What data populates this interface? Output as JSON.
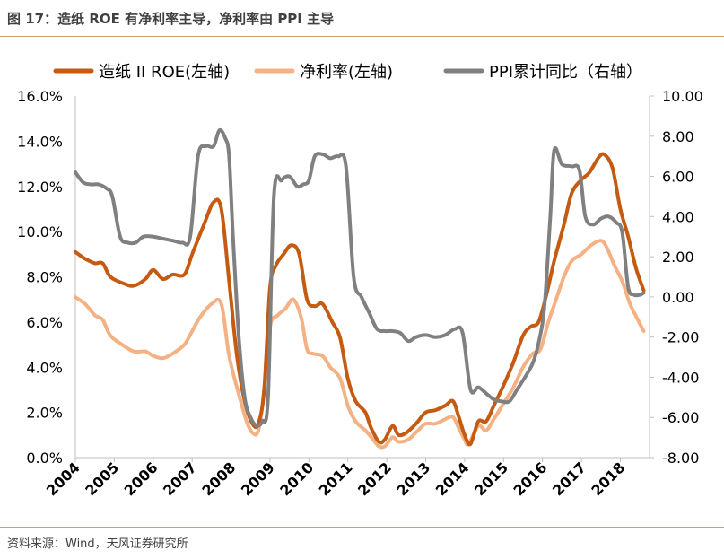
{
  "header": {
    "title": "图 17：造纸 ROE 有净利率主导，净利率由 PPI 主导"
  },
  "footer": {
    "source": "资料来源：Wind，天风证券研究所"
  },
  "colors": {
    "roe": "#c55a11",
    "net_margin": "#f4b183",
    "ppi": "#808080",
    "rule": "#c8a165"
  },
  "chart_data": {
    "type": "line",
    "title": "图 17：造纸 ROE 有净利率主导，净利率由 PPI 主导",
    "legend_position": "top",
    "grid": false,
    "x_tick_labels": [
      "2004",
      "2005",
      "2006",
      "2007",
      "2008",
      "2009",
      "2010",
      "2011",
      "2012",
      "2013",
      "2014",
      "2015",
      "2016",
      "2017",
      "2018"
    ],
    "xlim": [
      2004.0,
      2018.75
    ],
    "y_left": {
      "ylim": [
        0,
        16
      ],
      "ticks": [
        0,
        2,
        4,
        6,
        8,
        10,
        12,
        14,
        16
      ],
      "tick_labels": [
        "0.0%",
        "2.0%",
        "4.0%",
        "6.0%",
        "8.0%",
        "10.0%",
        "12.0%",
        "14.0%",
        "16.0%"
      ]
    },
    "y_right": {
      "ylim": [
        -8,
        10
      ],
      "ticks": [
        -8,
        -6,
        -4,
        -2,
        0,
        2,
        4,
        6,
        8,
        10
      ],
      "tick_labels": [
        "-8.00",
        "-6.00",
        "-4.00",
        "-2.00",
        "0.00",
        "2.00",
        "4.00",
        "6.00",
        "8.00",
        "10.00"
      ]
    },
    "series": [
      {
        "name": "造纸 II ROE(左轴)",
        "axis": "left",
        "color": "#c55a11",
        "points": [
          [
            2004.0,
            9.1
          ],
          [
            2004.25,
            8.8
          ],
          [
            2004.5,
            8.6
          ],
          [
            2004.7,
            8.6
          ],
          [
            2004.9,
            8.0
          ],
          [
            2005.25,
            7.7
          ],
          [
            2005.5,
            7.6
          ],
          [
            2005.8,
            7.9
          ],
          [
            2006.0,
            8.3
          ],
          [
            2006.25,
            7.9
          ],
          [
            2006.5,
            8.1
          ],
          [
            2006.8,
            8.1
          ],
          [
            2007.0,
            9.0
          ],
          [
            2007.3,
            10.3
          ],
          [
            2007.55,
            11.3
          ],
          [
            2007.75,
            11.0
          ],
          [
            2007.95,
            7.8
          ],
          [
            2008.15,
            4.5
          ],
          [
            2008.35,
            2.5
          ],
          [
            2008.55,
            1.5
          ],
          [
            2008.7,
            1.5
          ],
          [
            2008.85,
            3.0
          ],
          [
            2009.0,
            7.5
          ],
          [
            2009.15,
            8.5
          ],
          [
            2009.35,
            9.0
          ],
          [
            2009.55,
            9.4
          ],
          [
            2009.75,
            9.0
          ],
          [
            2009.95,
            7.0
          ],
          [
            2010.15,
            6.7
          ],
          [
            2010.35,
            6.8
          ],
          [
            2010.6,
            6.0
          ],
          [
            2010.8,
            5.3
          ],
          [
            2011.0,
            3.5
          ],
          [
            2011.2,
            2.5
          ],
          [
            2011.45,
            2.0
          ],
          [
            2011.6,
            1.3
          ],
          [
            2011.8,
            0.7
          ],
          [
            2011.95,
            0.8
          ],
          [
            2012.15,
            1.4
          ],
          [
            2012.3,
            1.0
          ],
          [
            2012.5,
            1.1
          ],
          [
            2012.75,
            1.5
          ],
          [
            2013.0,
            2.0
          ],
          [
            2013.25,
            2.1
          ],
          [
            2013.5,
            2.3
          ],
          [
            2013.7,
            2.5
          ],
          [
            2013.85,
            1.8
          ],
          [
            2014.0,
            1.0
          ],
          [
            2014.15,
            0.6
          ],
          [
            2014.35,
            1.6
          ],
          [
            2014.55,
            1.6
          ],
          [
            2014.75,
            2.3
          ],
          [
            2015.0,
            3.2
          ],
          [
            2015.25,
            4.2
          ],
          [
            2015.5,
            5.4
          ],
          [
            2015.7,
            5.8
          ],
          [
            2015.9,
            6.0
          ],
          [
            2016.1,
            7.2
          ],
          [
            2016.3,
            8.7
          ],
          [
            2016.55,
            10.3
          ],
          [
            2016.75,
            11.7
          ],
          [
            2017.0,
            12.3
          ],
          [
            2017.2,
            12.6
          ],
          [
            2017.45,
            13.3
          ],
          [
            2017.6,
            13.4
          ],
          [
            2017.8,
            12.8
          ],
          [
            2018.0,
            11.0
          ],
          [
            2018.2,
            9.8
          ],
          [
            2018.4,
            8.4
          ],
          [
            2018.6,
            7.4
          ]
        ]
      },
      {
        "name": "净利率(左轴)",
        "axis": "left",
        "color": "#f4b183",
        "points": [
          [
            2004.0,
            7.1
          ],
          [
            2004.25,
            6.8
          ],
          [
            2004.5,
            6.3
          ],
          [
            2004.7,
            6.1
          ],
          [
            2004.9,
            5.4
          ],
          [
            2005.2,
            5.0
          ],
          [
            2005.5,
            4.7
          ],
          [
            2005.8,
            4.7
          ],
          [
            2006.0,
            4.5
          ],
          [
            2006.25,
            4.4
          ],
          [
            2006.5,
            4.6
          ],
          [
            2006.8,
            5.0
          ],
          [
            2007.0,
            5.6
          ],
          [
            2007.2,
            6.2
          ],
          [
            2007.5,
            6.8
          ],
          [
            2007.75,
            6.8
          ],
          [
            2007.95,
            4.5
          ],
          [
            2008.2,
            2.8
          ],
          [
            2008.4,
            1.6
          ],
          [
            2008.55,
            1.1
          ],
          [
            2008.7,
            1.2
          ],
          [
            2008.85,
            3.0
          ],
          [
            2009.0,
            5.8
          ],
          [
            2009.2,
            6.3
          ],
          [
            2009.4,
            6.6
          ],
          [
            2009.6,
            7.0
          ],
          [
            2009.8,
            6.2
          ],
          [
            2009.95,
            4.8
          ],
          [
            2010.1,
            4.6
          ],
          [
            2010.35,
            4.5
          ],
          [
            2010.55,
            4.0
          ],
          [
            2010.8,
            3.5
          ],
          [
            2011.0,
            2.3
          ],
          [
            2011.2,
            1.6
          ],
          [
            2011.45,
            1.2
          ],
          [
            2011.65,
            0.8
          ],
          [
            2011.8,
            0.5
          ],
          [
            2011.95,
            0.5
          ],
          [
            2012.15,
            0.9
          ],
          [
            2012.3,
            0.7
          ],
          [
            2012.55,
            0.8
          ],
          [
            2012.8,
            1.2
          ],
          [
            2013.0,
            1.5
          ],
          [
            2013.25,
            1.5
          ],
          [
            2013.5,
            1.7
          ],
          [
            2013.7,
            1.8
          ],
          [
            2013.85,
            1.3
          ],
          [
            2014.0,
            0.8
          ],
          [
            2014.1,
            0.6
          ],
          [
            2014.35,
            1.4
          ],
          [
            2014.55,
            1.2
          ],
          [
            2014.75,
            1.7
          ],
          [
            2015.0,
            2.4
          ],
          [
            2015.25,
            3.1
          ],
          [
            2015.5,
            4.0
          ],
          [
            2015.75,
            4.6
          ],
          [
            2015.95,
            4.8
          ],
          [
            2016.15,
            6.0
          ],
          [
            2016.35,
            7.0
          ],
          [
            2016.55,
            8.0
          ],
          [
            2016.75,
            8.7
          ],
          [
            2017.0,
            9.0
          ],
          [
            2017.25,
            9.4
          ],
          [
            2017.5,
            9.6
          ],
          [
            2017.65,
            9.3
          ],
          [
            2017.85,
            8.5
          ],
          [
            2018.05,
            7.8
          ],
          [
            2018.25,
            6.8
          ],
          [
            2018.45,
            6.1
          ],
          [
            2018.6,
            5.6
          ]
        ]
      },
      {
        "name": "PPI累计同比（右轴）",
        "axis": "right",
        "color": "#808080",
        "points": [
          [
            2004.0,
            6.2
          ],
          [
            2004.2,
            5.7
          ],
          [
            2004.4,
            5.6
          ],
          [
            2004.6,
            5.6
          ],
          [
            2004.8,
            5.4
          ],
          [
            2004.95,
            5.0
          ],
          [
            2005.15,
            3.0
          ],
          [
            2005.35,
            2.7
          ],
          [
            2005.55,
            2.7
          ],
          [
            2005.75,
            3.0
          ],
          [
            2006.0,
            3.0
          ],
          [
            2006.25,
            2.9
          ],
          [
            2006.5,
            2.8
          ],
          [
            2006.75,
            2.7
          ],
          [
            2006.95,
            3.0
          ],
          [
            2007.15,
            7.0
          ],
          [
            2007.35,
            7.5
          ],
          [
            2007.55,
            7.5
          ],
          [
            2007.7,
            8.3
          ],
          [
            2007.85,
            7.9
          ],
          [
            2007.95,
            7.0
          ],
          [
            2008.05,
            3.0
          ],
          [
            2008.2,
            -2.0
          ],
          [
            2008.35,
            -5.0
          ],
          [
            2008.5,
            -6.0
          ],
          [
            2008.65,
            -6.4
          ],
          [
            2008.8,
            -6.2
          ],
          [
            2008.95,
            -5.0
          ],
          [
            2009.1,
            5.0
          ],
          [
            2009.3,
            5.8
          ],
          [
            2009.5,
            6.0
          ],
          [
            2009.7,
            5.5
          ],
          [
            2009.85,
            5.6
          ],
          [
            2010.0,
            5.8
          ],
          [
            2010.15,
            7.0
          ],
          [
            2010.35,
            7.1
          ],
          [
            2010.55,
            6.9
          ],
          [
            2010.75,
            7.0
          ],
          [
            2010.95,
            6.5
          ],
          [
            2011.15,
            1.0
          ],
          [
            2011.35,
            0.0
          ],
          [
            2011.55,
            -0.8
          ],
          [
            2011.75,
            -1.6
          ],
          [
            2011.95,
            -1.7
          ],
          [
            2012.15,
            -1.7
          ],
          [
            2012.35,
            -1.8
          ],
          [
            2012.55,
            -2.2
          ],
          [
            2012.75,
            -2.0
          ],
          [
            2013.0,
            -1.9
          ],
          [
            2013.25,
            -2.0
          ],
          [
            2013.5,
            -1.9
          ],
          [
            2013.75,
            -1.6
          ],
          [
            2013.95,
            -1.8
          ],
          [
            2014.15,
            -4.6
          ],
          [
            2014.35,
            -4.5
          ],
          [
            2014.55,
            -4.8
          ],
          [
            2014.75,
            -5.1
          ],
          [
            2014.95,
            -5.2
          ],
          [
            2015.15,
            -5.2
          ],
          [
            2015.35,
            -4.6
          ],
          [
            2015.55,
            -4.0
          ],
          [
            2015.75,
            -3.3
          ],
          [
            2015.9,
            -2.3
          ],
          [
            2016.05,
            -0.5
          ],
          [
            2016.2,
            4.0
          ],
          [
            2016.3,
            7.3
          ],
          [
            2016.5,
            6.6
          ],
          [
            2016.75,
            6.5
          ],
          [
            2016.95,
            6.3
          ],
          [
            2017.1,
            4.0
          ],
          [
            2017.3,
            3.6
          ],
          [
            2017.5,
            3.9
          ],
          [
            2017.7,
            4.0
          ],
          [
            2017.9,
            3.7
          ],
          [
            2018.05,
            3.2
          ],
          [
            2018.2,
            0.5
          ],
          [
            2018.35,
            0.1
          ],
          [
            2018.5,
            0.1
          ],
          [
            2018.6,
            0.2
          ]
        ]
      }
    ]
  }
}
